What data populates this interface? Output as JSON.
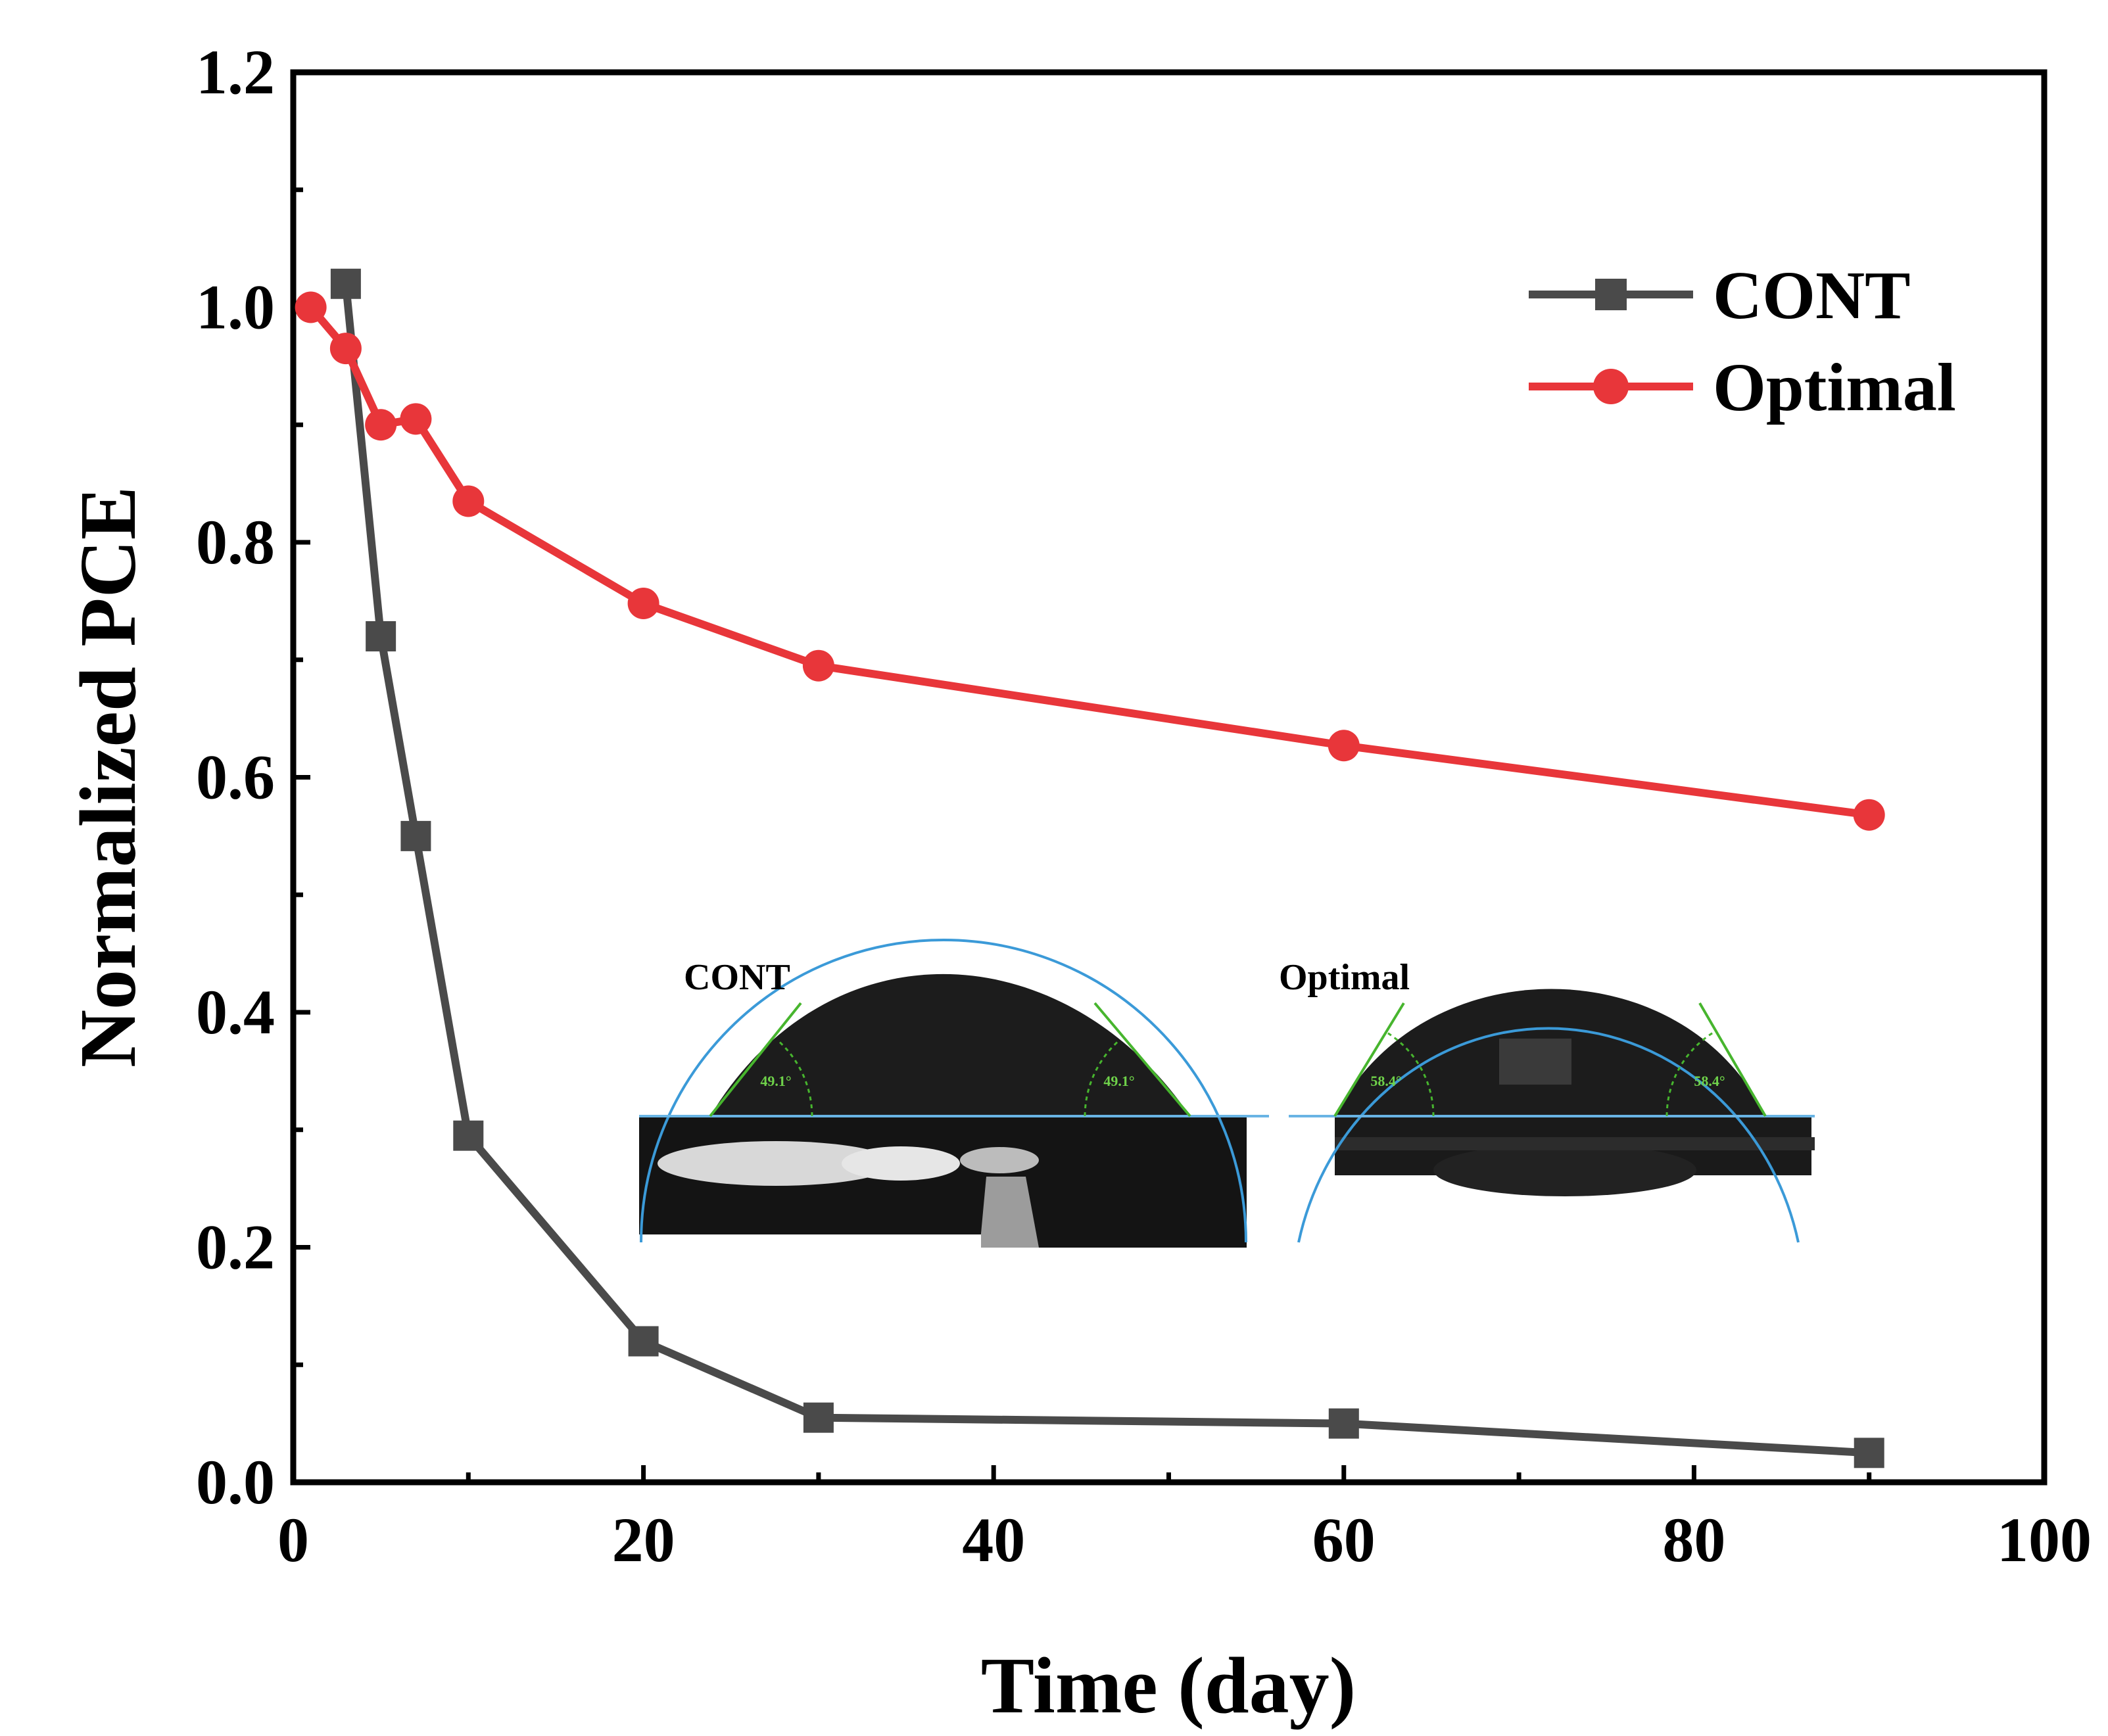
{
  "chart_data": {
    "type": "line",
    "title": "",
    "xlabel": "Time (day)",
    "ylabel": "Normalized PCE",
    "xlim": [
      0,
      100
    ],
    "ylim": [
      0,
      1.2
    ],
    "xticks": [
      "0",
      "20",
      "40",
      "60",
      "80",
      "100"
    ],
    "yticks": [
      "0.0",
      "0.2",
      "0.4",
      "0.6",
      "0.8",
      "1.0",
      "1.2"
    ],
    "grid": false,
    "legend_position": "top-right",
    "series": [
      {
        "name": "CONT",
        "color": "#4a4a4a",
        "marker": "square",
        "x": [
          3,
          5,
          7,
          10,
          20,
          30,
          60,
          90
        ],
        "y": [
          1.02,
          0.72,
          0.55,
          0.295,
          0.12,
          0.055,
          0.05,
          0.025
        ]
      },
      {
        "name": "Optimal",
        "color": "#e8363a",
        "marker": "circle",
        "x": [
          1,
          3,
          5,
          7,
          10,
          20,
          30,
          60,
          90
        ],
        "y": [
          1.0,
          0.965,
          0.9,
          0.905,
          0.835,
          0.748,
          0.695,
          0.627,
          0.568
        ]
      }
    ],
    "inset": {
      "left": {
        "label": "CONT",
        "angle": "49.1°"
      },
      "right": {
        "label": "Optimal",
        "angle": "58.4°"
      }
    }
  }
}
